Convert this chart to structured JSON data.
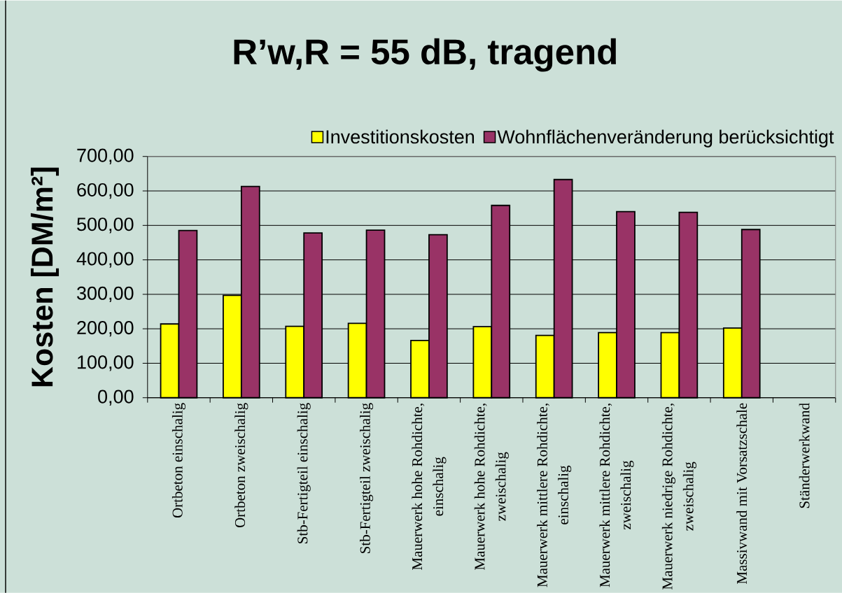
{
  "chart_data": {
    "type": "bar",
    "title": "R’w,R = 55 dB, tragend",
    "ylabel": "Kosten [DM/m²]",
    "categories": [
      "Ortbeton einschalig",
      "Ortbeton zweischalig",
      "Stb-Fertigteil einschalig",
      "Stb-Fertigteil zweischalig",
      "Mauerwerk hohe Rohdichte, einschalig",
      "Mauerwerk hohe Rohdichte, zweischalig",
      "Mauerwerk mittlere Rohdichte, einschalig",
      "Mauerwerk mittlere Rohdichte, zweischalig",
      "Mauerwerk niedrige Rohdichte, zweischalig",
      "Massivwand mit Vorsatzschale",
      "Ständerwerkwand"
    ],
    "series": [
      {
        "name": "Investitionskosten",
        "color": "#ffff00",
        "values": [
          214,
          297,
          207,
          216,
          166,
          206,
          181,
          189,
          189,
          202,
          null
        ]
      },
      {
        "name": "Wohnflächenveränderung berücksichtigt",
        "color": "#993366",
        "values": [
          485,
          613,
          478,
          486,
          473,
          558,
          633,
          540,
          538,
          488,
          null
        ]
      }
    ],
    "ylim": [
      0,
      700
    ],
    "yticks": [
      {
        "value": 0,
        "label": "0,00"
      },
      {
        "value": 100,
        "label": "100,00"
      },
      {
        "value": 200,
        "label": "200,00"
      },
      {
        "value": 300,
        "label": "300,00"
      },
      {
        "value": 400,
        "label": "400,00"
      },
      {
        "value": 500,
        "label": "500,00"
      },
      {
        "value": 600,
        "label": "600,00"
      },
      {
        "value": 700,
        "label": "700,00"
      }
    ],
    "grid": "y",
    "legend": "top right"
  }
}
